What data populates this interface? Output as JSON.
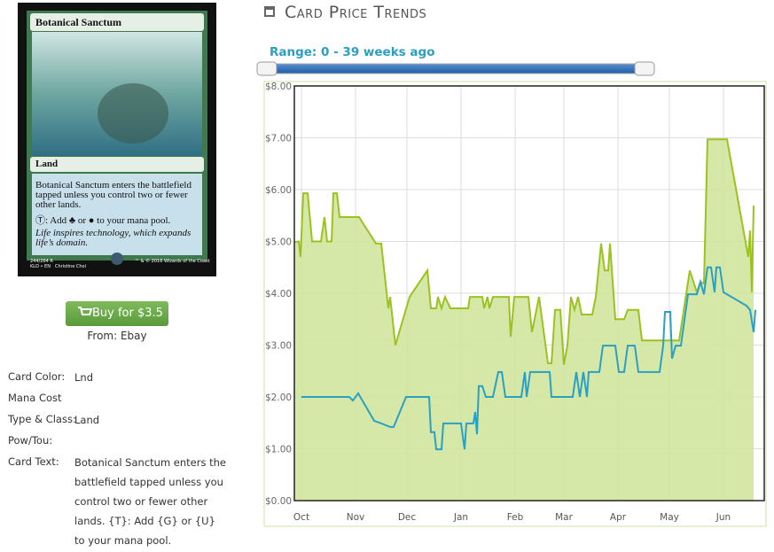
{
  "card": {
    "name": "Botanical Sanctum",
    "type_line": "Land",
    "rules_text": "Botanical Sanctum enters the battlefield tapped unless you control two or fewer other lands.",
    "mana_text": "Ⓣ: Add ♣ or ● to your mana pool.",
    "flavor_text": "Life inspires technology, which expands life’s domain.",
    "collector_number": "244/264 R",
    "set_line": "KLD • EN",
    "artist": "Christine Choi",
    "copyright": "™ & © 2016 Wizards of the Coast"
  },
  "buy": {
    "button": "Buy for $3.5",
    "source": "From: Ebay"
  },
  "details": [
    {
      "label": "Card Color:",
      "value": "Lnd"
    },
    {
      "label": "Mana Cost"
    },
    {
      "label": "Type & Class:",
      "value": "Land"
    },
    {
      "label": "Pow/Tou:"
    },
    {
      "label": "Card Text:",
      "value": "Botanical Sanctum enters the battlefield tapped unless you control two or fewer other lands. {T}: Add {G} or {U} to your mana pool."
    }
  ],
  "chart_data": {
    "type": "line",
    "title": "Card Price Trends",
    "range_label": "Range: 0 - 39 weeks ago",
    "xlim": [
      0,
      265
    ],
    "xticks": [
      {
        "value": 4,
        "label": "Oct"
      },
      {
        "value": 34.5,
        "label": "Nov"
      },
      {
        "value": 63.5,
        "label": "Dec"
      },
      {
        "value": 94,
        "label": "Jan"
      },
      {
        "value": 124.5,
        "label": "Feb"
      },
      {
        "value": 152,
        "label": "Mar"
      },
      {
        "value": 182.5,
        "label": "Apr"
      },
      {
        "value": 211.5,
        "label": "May"
      },
      {
        "value": 242,
        "label": "Jun"
      }
    ],
    "ylim": [
      0,
      8
    ],
    "yticks": [
      {
        "value": 0,
        "label": "$0.00"
      },
      {
        "value": 1,
        "label": "$1.00"
      },
      {
        "value": 2,
        "label": "$2.00"
      },
      {
        "value": 3,
        "label": "$3.00"
      },
      {
        "value": 4,
        "label": "$4.00"
      },
      {
        "value": 5,
        "label": "$5.00"
      },
      {
        "value": 6,
        "label": "$6.00"
      },
      {
        "value": 7,
        "label": "$7.00"
      },
      {
        "value": 8,
        "label": "$8.00"
      }
    ],
    "grid": true,
    "series": [
      {
        "color": "#9bc21f",
        "fill": "#d2e69f",
        "x": [
          0,
          2.5,
          3.5,
          5,
          7.5,
          10,
          15,
          17,
          18.5,
          21,
          22,
          24,
          25.5,
          36.5,
          46,
          49,
          53,
          54,
          57,
          65,
          75,
          77,
          80,
          81,
          83,
          85,
          88,
          98,
          99,
          106,
          107,
          109,
          110,
          112,
          121,
          122,
          124,
          132,
          134,
          138,
          143,
          145,
          147,
          150,
          152,
          154,
          156,
          158,
          160,
          162,
          168,
          170,
          173,
          175,
          177,
          178,
          181,
          186,
          188,
          194,
          196,
          217,
          223,
          227,
          229,
          231,
          233,
          244,
          256,
          257,
          258,
          259
        ],
        "values": [
          4.99,
          5.0,
          4.7,
          5.93,
          5.93,
          5.0,
          5.0,
          5.47,
          5.0,
          5.0,
          5.93,
          5.93,
          5.47,
          5.47,
          4.96,
          4.96,
          3.71,
          3.93,
          3.0,
          3.93,
          4.44,
          3.71,
          3.71,
          3.93,
          3.71,
          3.93,
          3.71,
          3.71,
          3.93,
          3.93,
          3.71,
          3.93,
          3.71,
          3.93,
          3.93,
          3.16,
          3.93,
          3.93,
          3.25,
          3.93,
          2.65,
          2.65,
          3.68,
          3.68,
          2.62,
          3.0,
          3.93,
          3.68,
          3.93,
          3.59,
          3.59,
          3.93,
          4.96,
          4.44,
          4.44,
          4.96,
          3.5,
          3.5,
          3.68,
          3.68,
          3.09,
          3.09,
          4.44,
          4.02,
          4.22,
          4.19,
          6.97,
          6.97,
          4.7,
          5.21,
          4.02,
          5.69
        ]
      },
      {
        "color": "#2aa0c2",
        "x": [
          4,
          31,
          33,
          36,
          45,
          49,
          54,
          56,
          63,
          76,
          77,
          79,
          80,
          83,
          84,
          94,
          96,
          97,
          101,
          102,
          103,
          104,
          106,
          108,
          112,
          115,
          117,
          119,
          128,
          130,
          131,
          133,
          144,
          145,
          157,
          159,
          161,
          163,
          165,
          166,
          172,
          174,
          181,
          183,
          186,
          188,
          192,
          194,
          206,
          208,
          209,
          212,
          213,
          215,
          218,
          222,
          227,
          229,
          231,
          233,
          235,
          237,
          238,
          240,
          242,
          255,
          257,
          259,
          260
        ],
        "values": [
          2.0,
          2.0,
          1.93,
          2.07,
          1.54,
          1.49,
          1.42,
          1.42,
          2.0,
          2.0,
          1.32,
          1.32,
          0.99,
          0.99,
          1.49,
          1.49,
          0.99,
          1.49,
          1.49,
          1.71,
          1.28,
          2.21,
          2.21,
          2.0,
          2.0,
          2.48,
          2.48,
          2.0,
          2.0,
          2.48,
          2.0,
          2.48,
          2.48,
          2.0,
          2.0,
          2.48,
          2.0,
          2.48,
          2.0,
          2.48,
          2.48,
          2.99,
          2.99,
          2.48,
          2.48,
          2.99,
          2.99,
          2.48,
          2.48,
          2.99,
          3.64,
          3.64,
          2.74,
          2.99,
          2.99,
          3.98,
          3.98,
          4.22,
          3.98,
          4.5,
          4.5,
          4.02,
          4.5,
          4.5,
          4.02,
          3.76,
          3.68,
          3.25,
          3.68
        ]
      }
    ]
  }
}
